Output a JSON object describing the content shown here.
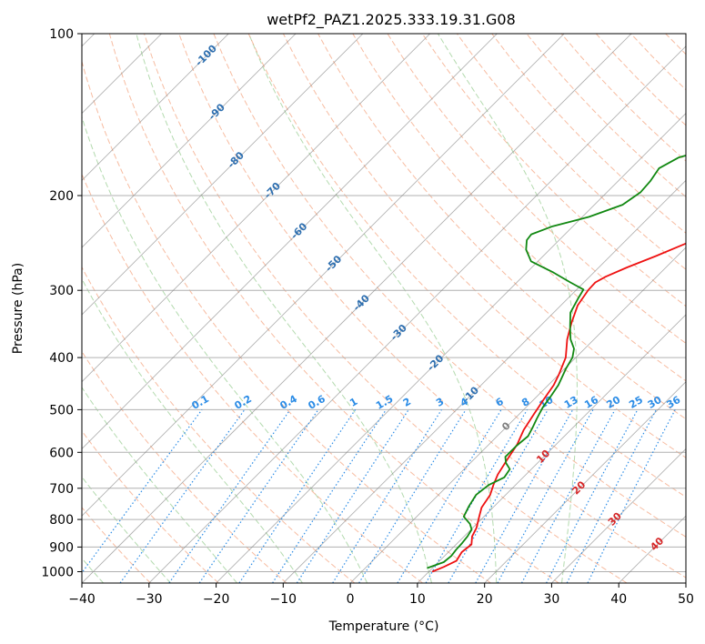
{
  "chart_data": {
    "type": "line",
    "subtype": "skew-t log-p diagram",
    "title": "wetPf2_PAZ1.2025.333.19.31.G08",
    "xlabel": "Temperature (°C)",
    "ylabel": "Pressure (hPa)",
    "xlim": [
      -40,
      50
    ],
    "ylim": [
      1050,
      100
    ],
    "y_scale": "log",
    "x_ticks": [
      -40,
      -30,
      -20,
      -10,
      0,
      10,
      20,
      30,
      40,
      50
    ],
    "x_tick_labels": [
      "−40",
      "−30",
      "−20",
      "−10",
      "0",
      "10",
      "20",
      "30",
      "40",
      "50"
    ],
    "y_ticks": [
      1000,
      900,
      800,
      700,
      600,
      500,
      400,
      300,
      200,
      100
    ],
    "y_tick_labels": [
      "1000",
      "900",
      "800",
      "700",
      "600",
      "500",
      "400",
      "300",
      "200",
      "100"
    ],
    "grid": true,
    "colors": {
      "temperature": "#ee1111",
      "dewpoint": "#118811",
      "isotherm": "#7f7f7f",
      "dry_adiabat": "#f4a582",
      "moist_adiabat": "#a6d3a0",
      "mixing_ratio": "#2b8ce6",
      "label_blue": "#2e6fb0",
      "label_red": "#d62728",
      "label_gray": "#7f7f7f"
    },
    "series": [
      {
        "name": "Temperature",
        "points": [
          [
            10.5,
            1000
          ],
          [
            11.5,
            980
          ],
          [
            12.5,
            955
          ],
          [
            12.0,
            920
          ],
          [
            12.3,
            890
          ],
          [
            11.2,
            860
          ],
          [
            10.6,
            830
          ],
          [
            9.3,
            790
          ],
          [
            8.3,
            760
          ],
          [
            7.7,
            720
          ],
          [
            6.7,
            690
          ],
          [
            5.8,
            660
          ],
          [
            5.0,
            620
          ],
          [
            4.2,
            580
          ],
          [
            3.0,
            545
          ],
          [
            2.2,
            510
          ],
          [
            1.5,
            480
          ],
          [
            0.8,
            450
          ],
          [
            0.0,
            430
          ],
          [
            -1.5,
            400
          ],
          [
            -4.0,
            370
          ],
          [
            -5.8,
            345
          ],
          [
            -7.5,
            320
          ],
          [
            -8.2,
            300
          ],
          [
            -8.3,
            290
          ],
          [
            -7.6,
            283
          ],
          [
            -5.8,
            272
          ],
          [
            -3.2,
            259
          ],
          [
            -0.5,
            245
          ],
          [
            3.0,
            228
          ],
          [
            6.0,
            212
          ],
          [
            9.0,
            198
          ],
          [
            11.5,
            186
          ],
          [
            13.5,
            175
          ],
          [
            16.0,
            162
          ],
          [
            18.0,
            153
          ],
          [
            20.0,
            147
          ],
          [
            23.0,
            140
          ],
          [
            25.8,
            132
          ],
          [
            27.3,
            124
          ],
          [
            28.5,
            115
          ],
          [
            29.2,
            107
          ],
          [
            30.0,
            100
          ]
        ]
      },
      {
        "name": "Dewpoint",
        "points": [
          [
            9.2,
            985
          ],
          [
            10.8,
            960
          ],
          [
            11.0,
            935
          ],
          [
            10.8,
            910
          ],
          [
            10.7,
            885
          ],
          [
            10.5,
            860
          ],
          [
            10.1,
            835
          ],
          [
            9.0,
            815
          ],
          [
            7.0,
            790
          ],
          [
            6.2,
            755
          ],
          [
            5.6,
            720
          ],
          [
            6.0,
            690
          ],
          [
            7.2,
            668
          ],
          [
            6.8,
            645
          ],
          [
            5.3,
            628
          ],
          [
            4.3,
            612
          ],
          [
            4.3,
            585
          ],
          [
            4.6,
            560
          ],
          [
            4.0,
            540
          ],
          [
            3.3,
            520
          ],
          [
            2.5,
            495
          ],
          [
            2.0,
            470
          ],
          [
            1.5,
            450
          ],
          [
            0.2,
            420
          ],
          [
            -0.5,
            400
          ],
          [
            -1.6,
            385
          ],
          [
            -3.5,
            370
          ],
          [
            -5.5,
            350
          ],
          [
            -7.5,
            330
          ],
          [
            -8.5,
            310
          ],
          [
            -9.0,
            299
          ],
          [
            -12.0,
            290
          ],
          [
            -16.0,
            278
          ],
          [
            -21.0,
            265
          ],
          [
            -23.5,
            252
          ],
          [
            -24.8,
            242
          ],
          [
            -25.0,
            236
          ],
          [
            -23.0,
            228
          ],
          [
            -19.0,
            219
          ],
          [
            -15.8,
            208
          ],
          [
            -15.0,
            197
          ],
          [
            -15.2,
            188
          ],
          [
            -15.8,
            178
          ],
          [
            -14.5,
            170
          ],
          [
            -12.0,
            165
          ],
          [
            -10.5,
            160
          ],
          [
            -10.0,
            154
          ],
          [
            -10.5,
            147
          ],
          [
            -10.3,
            140
          ],
          [
            -9.0,
            133
          ],
          [
            -7.5,
            126
          ],
          [
            -5.0,
            118
          ],
          [
            -3.5,
            111
          ],
          [
            -1.8,
            104
          ],
          [
            -0.5,
            100
          ]
        ]
      }
    ],
    "isotherms": [
      -160,
      -150,
      -140,
      -130,
      -120,
      -110,
      -100,
      -90,
      -80,
      -70,
      -60,
      -50,
      -40,
      -30,
      -20,
      -10,
      0,
      10,
      20,
      30,
      40,
      50
    ],
    "isotherm_labels": [
      {
        "t": -100,
        "p": 110,
        "text": "-100"
      },
      {
        "t": -90,
        "p": 140,
        "text": "-90"
      },
      {
        "t": -80,
        "p": 172,
        "text": "-80"
      },
      {
        "t": -70,
        "p": 196,
        "text": "-70"
      },
      {
        "t": -60,
        "p": 233,
        "text": "-60"
      },
      {
        "t": -50,
        "p": 268,
        "text": "-50"
      },
      {
        "t": -40,
        "p": 317,
        "text": "-40"
      },
      {
        "t": -30,
        "p": 360,
        "text": "-30"
      },
      {
        "t": -20,
        "p": 410,
        "text": "-20"
      },
      {
        "t": -10,
        "p": 470,
        "text": "-10"
      },
      {
        "t": 0,
        "p": 538,
        "text": "0"
      },
      {
        "t": 10,
        "p": 612,
        "text": "10"
      },
      {
        "t": 20,
        "p": 700,
        "text": "20"
      },
      {
        "t": 30,
        "p": 800,
        "text": "30"
      },
      {
        "t": 40,
        "p": 890,
        "text": "40"
      }
    ],
    "dry_adiabats_theta_K": [
      230,
      240,
      250,
      260,
      270,
      280,
      290,
      300,
      310,
      320,
      330,
      340,
      350,
      360,
      370,
      380,
      390,
      400,
      410,
      420,
      430,
      440,
      450,
      460
    ],
    "moist_adiabats_theta_w_C": [
      -40,
      -30,
      -20,
      -10,
      0,
      10,
      20,
      30
    ],
    "mixing_ratios_gkg": [
      0.1,
      0.2,
      0.4,
      0.6,
      1,
      1.5,
      2,
      3,
      4,
      6,
      8,
      10,
      13,
      16,
      20,
      25,
      30,
      36
    ],
    "mixing_ratio_labels": [
      "0.1",
      "0.2",
      "0.4",
      "0.6",
      "1",
      "1.5",
      "2",
      "3",
      "4",
      "6",
      "8",
      "10",
      "13",
      "16",
      "20",
      "25",
      "30",
      "36"
    ]
  }
}
